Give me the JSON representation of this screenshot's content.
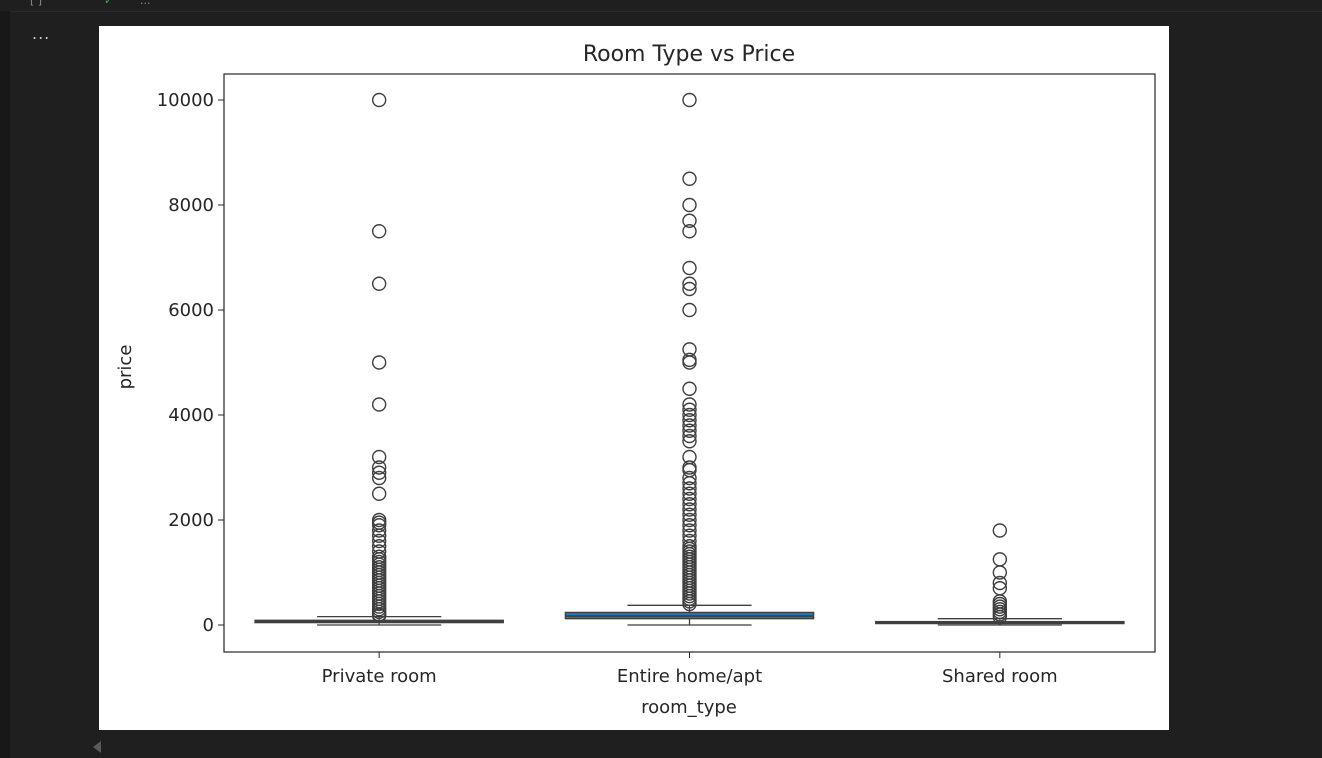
{
  "cell": {
    "execution_count": "[ ]",
    "status_text": "...",
    "output_menu": "...",
    "status_icon": "check-icon"
  },
  "chart_data": {
    "type": "box",
    "title": "Room Type vs Price",
    "xlabel": "room_type",
    "ylabel": "price",
    "ylim": [
      -500,
      10500
    ],
    "yticks": [
      0,
      2000,
      4000,
      6000,
      8000,
      10000
    ],
    "categories": [
      "Private room",
      "Entire home/apt",
      "Shared room"
    ],
    "grid": false,
    "legend": "none",
    "box_color": "#1f77b4",
    "boxes": [
      {
        "category": "Private room",
        "whisker_low": 0,
        "q1": 45,
        "median": 70,
        "q3": 90,
        "whisker_high": 160,
        "outliers": [
          10000,
          7500,
          6500,
          5000,
          4200,
          3200,
          3000,
          2900,
          2800,
          2500,
          2000,
          1950,
          1900,
          1800,
          1700,
          1600,
          1500,
          1400,
          1300,
          1250,
          1200,
          1150,
          1100,
          1050,
          1000,
          950,
          900,
          850,
          800,
          750,
          700,
          650,
          600,
          550,
          500,
          450,
          400,
          350,
          300,
          250,
          200,
          180
        ]
      },
      {
        "category": "Entire home/apt",
        "whisker_low": 0,
        "q1": 120,
        "median": 170,
        "q3": 240,
        "whisker_high": 375,
        "outliers": [
          10000,
          8500,
          8000,
          7700,
          7500,
          6800,
          6500,
          6400,
          6000,
          5250,
          5050,
          5000,
          4500,
          4200,
          4100,
          4000,
          3900,
          3800,
          3700,
          3600,
          3500,
          3200,
          3000,
          2950,
          2800,
          2700,
          2600,
          2500,
          2400,
          2300,
          2200,
          2100,
          2000,
          1900,
          1800,
          1700,
          1600,
          1500,
          1450,
          1400,
          1350,
          1300,
          1250,
          1200,
          1150,
          1100,
          1050,
          1000,
          950,
          900,
          850,
          800,
          750,
          700,
          650,
          600,
          550,
          500,
          450,
          400
        ]
      },
      {
        "category": "Shared room",
        "whisker_low": 0,
        "q1": 30,
        "median": 45,
        "q3": 65,
        "whisker_high": 120,
        "outliers": [
          1800,
          1250,
          1000,
          800,
          700,
          450,
          400,
          350,
          300,
          250,
          200,
          150
        ]
      }
    ]
  }
}
